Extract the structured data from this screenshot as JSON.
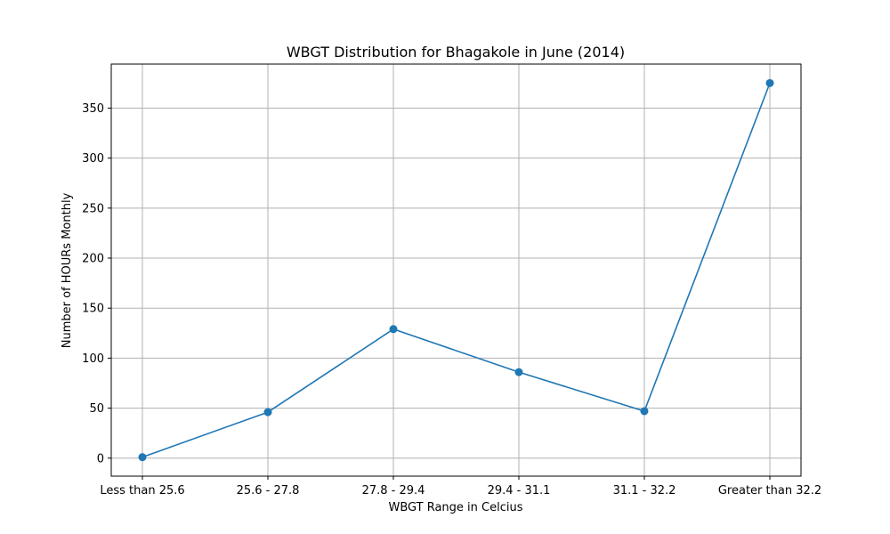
{
  "chart_data": {
    "type": "line",
    "title": "WBGT Distribution for Bhagakole in June (2014)",
    "xlabel": "WBGT Range in Celcius",
    "ylabel": "Number of HOURs Monthly",
    "categories": [
      "Less than 25.6",
      "25.6 - 27.8",
      "27.8 - 29.4",
      "29.4 - 31.1",
      "31.1 - 32.2",
      "Greater than 32.2"
    ],
    "values": [
      1,
      46,
      129,
      86,
      47,
      375
    ],
    "ylim": [
      -18,
      394
    ],
    "yticks": [
      0,
      50,
      100,
      150,
      200,
      250,
      300,
      350
    ],
    "grid": true,
    "legend": false,
    "line_color": "#1f77b4",
    "grid_color": "#b0b0b0"
  }
}
